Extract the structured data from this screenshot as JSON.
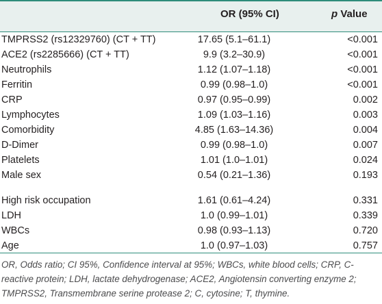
{
  "table": {
    "header": {
      "or_label": "OR (95% CI)",
      "p_italic": "p",
      "p_rest": " Value"
    },
    "group1": [
      {
        "variable": "TMPRSS2 (rs12329760) (CT + TT)",
        "or": "17.65 (5.1–61.1)",
        "p": "<0.001"
      },
      {
        "variable": "ACE2 (rs2285666) (CT + TT)",
        "or": "9.9 (3.2–30.9)",
        "p": "<0.001"
      },
      {
        "variable": "Neutrophils",
        "or": "1.12 (1.07–1.18)",
        "p": "<0.001"
      },
      {
        "variable": "Ferritin",
        "or": "0.99 (0.98–1.0)",
        "p": "<0.001"
      },
      {
        "variable": "CRP",
        "or": "0.97 (0.95–0.99)",
        "p": "0.002"
      },
      {
        "variable": "Lymphocytes",
        "or": "1.09 (1.03–1.16)",
        "p": "0.003"
      },
      {
        "variable": "Comorbidity",
        "or": "4.85 (1.63–14.36)",
        "p": "0.004"
      },
      {
        "variable": "D-Dimer",
        "or": "0.99 (0.98–1.0)",
        "p": "0.007"
      },
      {
        "variable": "Platelets",
        "or": "1.01 (1.0–1.01)",
        "p": "0.024"
      },
      {
        "variable": "Male sex",
        "or": "0.54 (0.21–1.36)",
        "p": "0.193"
      }
    ],
    "group2": [
      {
        "variable": "High risk occupation",
        "or": "1.61 (0.61–4.24)",
        "p": "0.331"
      },
      {
        "variable": "LDH",
        "or": "1.0 (0.99–1.01)",
        "p": "0.339"
      },
      {
        "variable": "WBCs",
        "or": "0.98 (0.93–1.13)",
        "p": "0.720"
      },
      {
        "variable": "Age",
        "or": "1.0 (0.97–1.03)",
        "p": "0.757"
      }
    ]
  },
  "footnote": "OR, Odds ratio; CI 95%, Confidence interval at 95%; WBCs, white blood cells; CRP, C-reactive protein; LDH, lactate dehydrogenase; ACE2, Angiotensin converting enzyme 2; TMPRSS2, Transmembrane serine protease 2; C, cytosine; T, thymine.",
  "colors": {
    "header_background": "#e8f0ee",
    "rule": "#2d8c7a",
    "text": "#231f20",
    "footnote_text": "#4b4b4d"
  }
}
